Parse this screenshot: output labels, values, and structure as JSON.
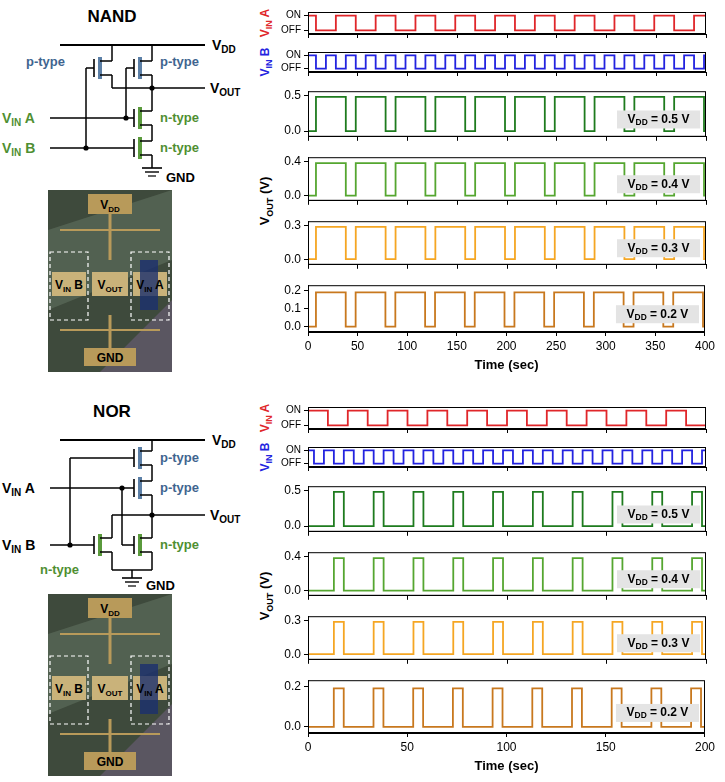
{
  "chart_data": [
    {
      "type": "line",
      "y_label": "VIN A",
      "color": "#e0262a",
      "x": [
        0,
        8,
        28,
        48,
        68,
        88,
        108,
        128,
        148,
        168,
        188,
        208,
        228,
        248,
        268,
        288,
        308,
        328,
        348,
        368,
        388,
        400
      ],
      "values": [
        1,
        0,
        1,
        0,
        1,
        0,
        1,
        0,
        1,
        0,
        1,
        0,
        1,
        0,
        1,
        0,
        1,
        0,
        1,
        0,
        1,
        1
      ],
      "xlim": [
        0,
        400
      ],
      "xticks": [
        0,
        50,
        100,
        150,
        200,
        250,
        300,
        350,
        400
      ],
      "ylim": [
        -0.25,
        1.25
      ],
      "yticks": [
        {
          "value": 0,
          "label": "OFF"
        },
        {
          "value": 1,
          "label": "ON"
        }
      ],
      "tick_labels": "y"
    },
    {
      "type": "line",
      "y_label": "VIN B",
      "color": "#2323e0",
      "x": [
        0,
        8,
        18,
        28,
        38,
        48,
        58,
        68,
        78,
        88,
        98,
        108,
        118,
        128,
        138,
        148,
        158,
        168,
        178,
        188,
        198,
        208,
        218,
        228,
        238,
        248,
        258,
        268,
        278,
        288,
        298,
        308,
        318,
        328,
        338,
        348,
        358,
        368,
        378,
        388,
        398,
        400
      ],
      "values": [
        1,
        0,
        1,
        0,
        1,
        0,
        1,
        0,
        1,
        0,
        1,
        0,
        1,
        0,
        1,
        0,
        1,
        0,
        1,
        0,
        1,
        0,
        1,
        0,
        1,
        0,
        1,
        0,
        1,
        0,
        1,
        0,
        1,
        0,
        1,
        0,
        1,
        0,
        1,
        0,
        1,
        1
      ],
      "xlim": [
        0,
        400
      ],
      "xticks": [
        0,
        50,
        100,
        150,
        200,
        250,
        300,
        350,
        400
      ],
      "ylim": [
        -0.25,
        1.25
      ],
      "yticks": [
        {
          "value": 0,
          "label": "OFF"
        },
        {
          "value": 1,
          "label": "ON"
        }
      ],
      "tick_labels": "y"
    },
    {
      "type": "line",
      "annotation": "VDD = 0.5 V",
      "color": "#1e7b1e",
      "x": [
        0,
        8,
        38,
        48,
        78,
        88,
        118,
        128,
        158,
        168,
        198,
        208,
        238,
        248,
        278,
        288,
        318,
        328,
        358,
        368,
        398,
        400
      ],
      "values": [
        0,
        0.48,
        0,
        0.48,
        0,
        0.48,
        0,
        0.48,
        0,
        0.48,
        0,
        0.48,
        0,
        0.48,
        0,
        0.48,
        0,
        0.48,
        0,
        0.48,
        0,
        0
      ],
      "xlim": [
        0,
        400
      ],
      "xticks": [
        0,
        50,
        100,
        150,
        200,
        250,
        300,
        350,
        400
      ],
      "ylim": [
        -0.08,
        0.56
      ],
      "yticks": [
        {
          "value": 0,
          "label": "0.0"
        },
        0.5
      ],
      "tick_labels": "y"
    },
    {
      "type": "line",
      "annotation": "VDD = 0.4 V",
      "y_label": "VOUT (V)",
      "color": "#55a630",
      "x": [
        0,
        8,
        38,
        48,
        78,
        88,
        118,
        128,
        158,
        168,
        198,
        208,
        238,
        248,
        278,
        288,
        318,
        328,
        358,
        368,
        398,
        400
      ],
      "values": [
        0,
        0.38,
        0,
        0.38,
        0,
        0.38,
        0,
        0.38,
        0,
        0.38,
        0,
        0.38,
        0,
        0.38,
        0,
        0.38,
        0,
        0.38,
        0,
        0.38,
        0,
        0
      ],
      "xlim": [
        0,
        400
      ],
      "xticks": [
        0,
        50,
        100,
        150,
        200,
        250,
        300,
        350,
        400
      ],
      "ylim": [
        -0.06,
        0.45
      ],
      "yticks": [
        {
          "value": 0,
          "label": "0.0"
        },
        0.4
      ],
      "tick_labels": "y"
    },
    {
      "type": "line",
      "annotation": "VDD = 0.3 V",
      "color": "#f5a623",
      "x": [
        0,
        8,
        38,
        48,
        78,
        88,
        118,
        128,
        158,
        168,
        198,
        208,
        238,
        248,
        278,
        288,
        318,
        328,
        358,
        368,
        398,
        400
      ],
      "values": [
        0,
        0.29,
        0,
        0.29,
        0,
        0.29,
        0,
        0.29,
        0,
        0.29,
        0,
        0.29,
        0,
        0.29,
        0,
        0.29,
        0,
        0.29,
        0,
        0.29,
        0,
        0
      ],
      "xlim": [
        0,
        400
      ],
      "xticks": [
        0,
        50,
        100,
        150,
        200,
        250,
        300,
        350,
        400
      ],
      "ylim": [
        -0.05,
        0.34
      ],
      "yticks": [
        {
          "value": 0,
          "label": "0.0"
        },
        0.3
      ],
      "tick_labels": "y"
    },
    {
      "type": "line",
      "annotation": "VDD = 0.2 V",
      "x_label": "Time (sec)",
      "color": "#c8781e",
      "x": [
        0,
        8,
        38,
        48,
        78,
        88,
        118,
        128,
        158,
        168,
        198,
        208,
        238,
        248,
        278,
        288,
        318,
        328,
        358,
        368,
        398,
        400
      ],
      "values": [
        0,
        0.19,
        0,
        0.19,
        0,
        0.19,
        0,
        0.19,
        0,
        0.19,
        0,
        0.19,
        0,
        0.19,
        0,
        0.19,
        0,
        0.19,
        0,
        0.19,
        0,
        0
      ],
      "xlim": [
        0,
        400
      ],
      "xticks": [
        0,
        50,
        100,
        150,
        200,
        250,
        300,
        350,
        400
      ],
      "ylim": [
        -0.03,
        0.23
      ],
      "yticks": [
        {
          "value": 0,
          "label": "0.0"
        },
        0.1,
        0.2
      ]
    },
    {
      "type": "line",
      "y_label": "VIN A",
      "color": "#e0262a",
      "x": [
        0,
        10,
        20,
        30,
        40,
        50,
        60,
        70,
        80,
        90,
        100,
        110,
        120,
        130,
        140,
        150,
        160,
        170,
        180,
        190,
        200
      ],
      "values": [
        1,
        0,
        1,
        0,
        1,
        0,
        1,
        0,
        1,
        0,
        1,
        0,
        1,
        0,
        1,
        0,
        1,
        0,
        1,
        0,
        0
      ],
      "xlim": [
        0,
        200
      ],
      "xticks": [
        0,
        50,
        100,
        150,
        200
      ],
      "ylim": [
        -0.25,
        1.25
      ],
      "yticks": [
        {
          "value": 0,
          "label": "OFF"
        },
        {
          "value": 1,
          "label": "ON"
        }
      ],
      "tick_labels": "y"
    },
    {
      "type": "line",
      "y_label": "VIN B",
      "color": "#2323e0",
      "x": [
        0,
        3,
        8,
        13,
        18,
        23,
        28,
        33,
        38,
        43,
        48,
        53,
        58,
        63,
        68,
        73,
        78,
        83,
        88,
        93,
        98,
        103,
        108,
        113,
        118,
        123,
        128,
        133,
        138,
        143,
        148,
        153,
        158,
        163,
        168,
        173,
        178,
        183,
        188,
        193,
        198,
        200
      ],
      "values": [
        1,
        0,
        1,
        0,
        1,
        0,
        1,
        0,
        1,
        0,
        1,
        0,
        1,
        0,
        1,
        0,
        1,
        0,
        1,
        0,
        1,
        0,
        1,
        0,
        1,
        0,
        1,
        0,
        1,
        0,
        1,
        0,
        1,
        0,
        1,
        0,
        1,
        0,
        1,
        0,
        1,
        1
      ],
      "xlim": [
        0,
        200
      ],
      "xticks": [
        0,
        50,
        100,
        150,
        200
      ],
      "ylim": [
        -0.25,
        1.25
      ],
      "yticks": [
        {
          "value": 0,
          "label": "OFF"
        },
        {
          "value": 1,
          "label": "ON"
        }
      ],
      "tick_labels": "y"
    },
    {
      "type": "line",
      "annotation": "VDD = 0.5 V",
      "color": "#1e7b1e",
      "x": [
        0,
        13,
        18,
        33,
        38,
        53,
        58,
        73,
        78,
        93,
        98,
        113,
        118,
        133,
        138,
        153,
        158,
        173,
        178,
        193,
        198,
        200
      ],
      "values": [
        0,
        0.48,
        0,
        0.48,
        0,
        0.48,
        0,
        0.48,
        0,
        0.48,
        0,
        0.48,
        0,
        0.48,
        0,
        0.48,
        0,
        0.48,
        0,
        0.48,
        0,
        0
      ],
      "xlim": [
        0,
        200
      ],
      "xticks": [
        0,
        50,
        100,
        150,
        200
      ],
      "ylim": [
        -0.08,
        0.56
      ],
      "yticks": [
        {
          "value": 0,
          "label": "0.0"
        },
        0.5
      ],
      "tick_labels": "y"
    },
    {
      "type": "line",
      "annotation": "VDD = 0.4 V",
      "y_label": "VOUT (V)",
      "color": "#55a630",
      "x": [
        0,
        13,
        18,
        33,
        38,
        53,
        58,
        73,
        78,
        93,
        98,
        113,
        118,
        133,
        138,
        153,
        158,
        173,
        178,
        193,
        198,
        200
      ],
      "values": [
        0,
        0.38,
        0,
        0.38,
        0,
        0.38,
        0,
        0.38,
        0,
        0.38,
        0,
        0.38,
        0,
        0.38,
        0,
        0.38,
        0,
        0.38,
        0,
        0.38,
        0,
        0
      ],
      "xlim": [
        0,
        200
      ],
      "xticks": [
        0,
        50,
        100,
        150,
        200
      ],
      "ylim": [
        -0.06,
        0.45
      ],
      "yticks": [
        {
          "value": 0,
          "label": "0.0"
        },
        0.4
      ],
      "tick_labels": "y"
    },
    {
      "type": "line",
      "annotation": "VDD = 0.3 V",
      "color": "#f5a623",
      "x": [
        0,
        13,
        18,
        33,
        38,
        53,
        58,
        73,
        78,
        93,
        98,
        113,
        118,
        133,
        138,
        153,
        158,
        173,
        178,
        193,
        198,
        200
      ],
      "values": [
        0,
        0.29,
        0,
        0.29,
        0,
        0.29,
        0,
        0.29,
        0,
        0.29,
        0,
        0.29,
        0,
        0.29,
        0,
        0.29,
        0,
        0.29,
        0,
        0.29,
        0,
        0
      ],
      "xlim": [
        0,
        200
      ],
      "xticks": [
        0,
        50,
        100,
        150,
        200
      ],
      "ylim": [
        -0.05,
        0.34
      ],
      "yticks": [
        {
          "value": 0,
          "label": "0.0"
        },
        0.3
      ],
      "tick_labels": "y"
    },
    {
      "type": "line",
      "annotation": "VDD = 0.2 V",
      "x_label": "Time (sec)",
      "color": "#c8781e",
      "x": [
        0,
        13,
        18,
        33,
        38,
        53,
        58,
        73,
        78,
        93,
        98,
        113,
        118,
        133,
        138,
        153,
        158,
        173,
        178,
        193,
        198,
        200
      ],
      "values": [
        0,
        0.19,
        0,
        0.19,
        0,
        0.19,
        0,
        0.19,
        0,
        0.19,
        0,
        0.19,
        0,
        0.19,
        0,
        0.19,
        0,
        0.19,
        0,
        0.19,
        0,
        0
      ],
      "xlim": [
        0,
        200
      ],
      "xticks": [
        0,
        50,
        100,
        150,
        200
      ],
      "ylim": [
        -0.03,
        0.23
      ],
      "yticks": [
        {
          "value": 0,
          "label": "0.0"
        },
        0.2
      ]
    }
  ],
  "diagrams": [
    {
      "title": "NAND",
      "supply": "VDD",
      "output": "VOUT",
      "inputs": [
        "VIN A",
        "VIN B"
      ],
      "ground": "GND",
      "transistors": [
        "p-type",
        "p-type",
        "n-type",
        "n-type"
      ],
      "photo_labels": [
        "VDD",
        "VIN B",
        "VOUT",
        "VIN A",
        "GND"
      ]
    },
    {
      "title": "NOR",
      "supply": "VDD",
      "output": "VOUT",
      "inputs": [
        "VIN A",
        "VIN B"
      ],
      "ground": "GND",
      "transistors": [
        "p-type",
        "p-type",
        "n-type",
        "n-type"
      ],
      "photo_labels": [
        "VDD",
        "VIN B",
        "VOUT",
        "VIN A",
        "GND"
      ]
    }
  ]
}
